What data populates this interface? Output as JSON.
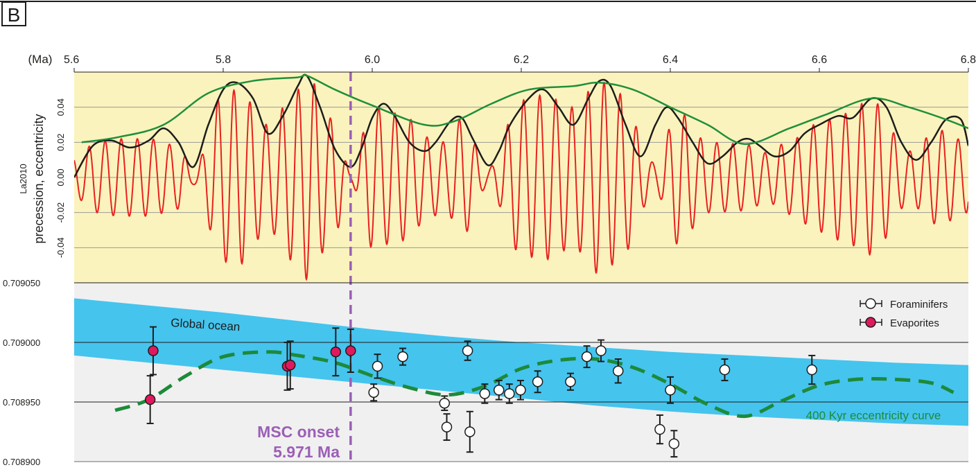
{
  "panel_label": "B",
  "colors": {
    "top_panel_bg": "#fbf3bd",
    "bottom_panel_bg": "#f0f0f0",
    "precession": "#e8211f",
    "eccentricity": "#1d1d1b",
    "envelope_400kyr": "#1f8f3a",
    "global_ocean_band": "#45c4ee",
    "model_curve": "#1d8a3a",
    "msc_line": "#9b5fb5",
    "evaporite_fill": "#e0195e"
  },
  "chart_data": [
    {
      "type": "line",
      "xlabel": "(Ma)",
      "ylabel_small": "La2010",
      "ylabel": "precession, eccentricity",
      "xlim": [
        5.6,
        6.8
      ],
      "ylim": [
        -0.06,
        0.06
      ],
      "x_ticks": [
        5.6,
        5.8,
        6.0,
        6.2,
        6.4,
        6.6,
        6.8
      ],
      "x_tick_labels": [
        "5.6",
        "5.8",
        "6.0",
        "6.2",
        "6.4",
        "6.6",
        "6.8"
      ],
      "y_ticks": [
        -0.04,
        -0.02,
        0.0,
        0.02,
        0.04
      ],
      "y_tick_labels": [
        "-0.04",
        "-0.02",
        "0.00",
        "0.02",
        "0.04"
      ],
      "grid": true,
      "series": [
        {
          "role": "eccentricity",
          "x": [
            5.6,
            5.625,
            5.65,
            5.675,
            5.7,
            5.72,
            5.74,
            5.76,
            5.78,
            5.8,
            5.818,
            5.84,
            5.86,
            5.88,
            5.9,
            5.912,
            5.93,
            5.95,
            5.971,
            5.985,
            6.0,
            6.015,
            6.03,
            6.05,
            6.07,
            6.085,
            6.105,
            6.12,
            6.135,
            6.155,
            6.17,
            6.185,
            6.21,
            6.23,
            6.25,
            6.27,
            6.29,
            6.305,
            6.32,
            6.34,
            6.36,
            6.38,
            6.395,
            6.41,
            6.43,
            6.45,
            6.47,
            6.49,
            6.505,
            6.52,
            6.54,
            6.56,
            6.58,
            6.6,
            6.625,
            6.645,
            6.67,
            6.69,
            6.71,
            6.73,
            6.75,
            6.77,
            6.79,
            6.8
          ],
          "y": [
            0.0,
            0.018,
            0.021,
            0.017,
            0.021,
            0.028,
            0.02,
            0.006,
            0.03,
            0.05,
            0.054,
            0.045,
            0.025,
            0.035,
            0.052,
            0.058,
            0.04,
            0.016,
            0.006,
            0.016,
            0.034,
            0.042,
            0.035,
            0.02,
            0.015,
            0.02,
            0.032,
            0.034,
            0.022,
            0.007,
            0.015,
            0.03,
            0.045,
            0.05,
            0.04,
            0.03,
            0.045,
            0.055,
            0.052,
            0.03,
            0.012,
            0.03,
            0.04,
            0.034,
            0.02,
            0.008,
            0.012,
            0.02,
            0.022,
            0.018,
            0.012,
            0.015,
            0.025,
            0.03,
            0.035,
            0.034,
            0.045,
            0.04,
            0.02,
            0.01,
            0.02,
            0.033,
            0.033,
            0.018
          ]
        },
        {
          "role": "400 Kyr envelope",
          "x": [
            5.61,
            5.66,
            5.72,
            5.78,
            5.84,
            5.9,
            5.912,
            5.95,
            6.0,
            6.07,
            6.11,
            6.16,
            6.21,
            6.27,
            6.305,
            6.35,
            6.4,
            6.45,
            6.5,
            6.56,
            6.61,
            6.67,
            6.72,
            6.77,
            6.8
          ],
          "y": [
            0.02,
            0.023,
            0.03,
            0.048,
            0.055,
            0.057,
            0.058,
            0.05,
            0.041,
            0.03,
            0.032,
            0.042,
            0.05,
            0.052,
            0.054,
            0.05,
            0.04,
            0.03,
            0.019,
            0.028,
            0.036,
            0.045,
            0.04,
            0.033,
            0.028
          ]
        },
        {
          "role": "precession",
          "amplitude_x": [
            5.6,
            5.63,
            5.66,
            5.7,
            5.74,
            5.76,
            5.8,
            5.82,
            5.86,
            5.9,
            5.912,
            5.95,
            5.971,
            6.0,
            6.04,
            6.08,
            6.1,
            6.12,
            6.155,
            6.2,
            6.23,
            6.27,
            6.305,
            6.33,
            6.38,
            6.41,
            6.45,
            6.5,
            6.53,
            6.56,
            6.6,
            6.63,
            6.67,
            6.72,
            6.76,
            6.8
          ],
          "amplitude_y": [
            0.011,
            0.02,
            0.022,
            0.022,
            0.018,
            0.004,
            0.048,
            0.05,
            0.03,
            0.05,
            0.058,
            0.032,
            0.003,
            0.04,
            0.036,
            0.022,
            0.02,
            0.034,
            0.005,
            0.044,
            0.047,
            0.04,
            0.055,
            0.048,
            0.008,
            0.038,
            0.02,
            0.019,
            0.014,
            0.021,
            0.031,
            0.036,
            0.044,
            0.015,
            0.027,
            0.02
          ],
          "period_kyr": 21.6
        }
      ]
    },
    {
      "type": "scatter",
      "xlim": [
        5.6,
        6.8
      ],
      "ylim": [
        0.7089,
        0.70905
      ],
      "y_ticks": [
        0.7089,
        0.70895,
        0.709,
        0.70905
      ],
      "y_tick_labels": [
        "0.708900",
        "0.708950",
        "0.709000",
        "0.709050"
      ],
      "grid": true,
      "legend_position": "top-right",
      "band": {
        "label": "Global ocean",
        "x": [
          5.6,
          5.7,
          5.8,
          5.9,
          6.0,
          6.1,
          6.2,
          6.3,
          6.4,
          6.5,
          6.6,
          6.7,
          6.8
        ],
        "upper": [
          0.709037,
          0.709031,
          0.709025,
          0.709018,
          0.709011,
          0.709005,
          0.709,
          0.708996,
          0.708992,
          0.708989,
          0.708986,
          0.708983,
          0.708981
        ],
        "lower": [
          0.708989,
          0.708983,
          0.708977,
          0.708971,
          0.708965,
          0.708959,
          0.708953,
          0.708947,
          0.708942,
          0.708938,
          0.708935,
          0.708932,
          0.70893
        ]
      },
      "curve": {
        "label": "400 Kyr eccentricity curve",
        "x": [
          5.655,
          5.7,
          5.75,
          5.8,
          5.86,
          5.9,
          5.95,
          6.0,
          6.05,
          6.1,
          6.15,
          6.2,
          6.25,
          6.3,
          6.35,
          6.4,
          6.45,
          6.5,
          6.55,
          6.6,
          6.65,
          6.7,
          6.75,
          6.78
        ],
        "y": [
          0.708943,
          0.708952,
          0.708972,
          0.708988,
          0.708992,
          0.708989,
          0.708983,
          0.708972,
          0.708962,
          0.708956,
          0.708963,
          0.708978,
          0.708985,
          0.708986,
          0.708979,
          0.708965,
          0.708948,
          0.708938,
          0.708951,
          0.708964,
          0.708969,
          0.708969,
          0.708966,
          0.708958
        ]
      },
      "series": [
        {
          "name": "Foraminifers",
          "marker": "open-circle",
          "points": [
            {
              "x": 6.002,
              "y": 0.708958,
              "err": 7e-06
            },
            {
              "x": 6.007,
              "y": 0.70898,
              "err": 1e-05
            },
            {
              "x": 6.041,
              "y": 0.708988,
              "err": 7e-06
            },
            {
              "x": 6.097,
              "y": 0.708949,
              "err": 6e-06
            },
            {
              "x": 6.1,
              "y": 0.708929,
              "err": 1.1e-05
            },
            {
              "x": 6.131,
              "y": 0.708925,
              "err": 1.7e-05
            },
            {
              "x": 6.128,
              "y": 0.708993,
              "err": 8e-06
            },
            {
              "x": 6.151,
              "y": 0.708957,
              "err": 8e-06
            },
            {
              "x": 6.17,
              "y": 0.70896,
              "err": 8e-06
            },
            {
              "x": 6.184,
              "y": 0.708957,
              "err": 8e-06
            },
            {
              "x": 6.199,
              "y": 0.70896,
              "err": 8e-06
            },
            {
              "x": 6.222,
              "y": 0.708967,
              "err": 9e-06
            },
            {
              "x": 6.266,
              "y": 0.708967,
              "err": 7e-06
            },
            {
              "x": 6.288,
              "y": 0.708988,
              "err": 9e-06
            },
            {
              "x": 6.307,
              "y": 0.708993,
              "err": 9e-06
            },
            {
              "x": 6.33,
              "y": 0.708976,
              "err": 1e-05
            },
            {
              "x": 6.386,
              "y": 0.708927,
              "err": 1.2e-05
            },
            {
              "x": 6.4,
              "y": 0.70896,
              "err": 1.1e-05
            },
            {
              "x": 6.405,
              "y": 0.708915,
              "err": 1.1e-05
            },
            {
              "x": 6.473,
              "y": 0.708977,
              "err": 9e-06
            },
            {
              "x": 6.59,
              "y": 0.708977,
              "err": 1.2e-05
            }
          ]
        },
        {
          "name": "Evaporites",
          "marker": "filled-circle",
          "points": [
            {
              "x": 5.706,
              "y": 0.708993,
              "err": 2e-05
            },
            {
              "x": 5.702,
              "y": 0.708952,
              "err": 2e-05
            },
            {
              "x": 5.886,
              "y": 0.70898,
              "err": 2e-05
            },
            {
              "x": 5.89,
              "y": 0.708981,
              "err": 2e-05
            },
            {
              "x": 5.951,
              "y": 0.708992,
              "err": 2e-05
            },
            {
              "x": 5.971,
              "y": 0.708993,
              "err": 1.8e-05
            }
          ]
        }
      ],
      "annotations": {
        "msc_line_x": 5.971,
        "msc_title": "MSC onset",
        "msc_value": "5.971 Ma"
      }
    }
  ]
}
